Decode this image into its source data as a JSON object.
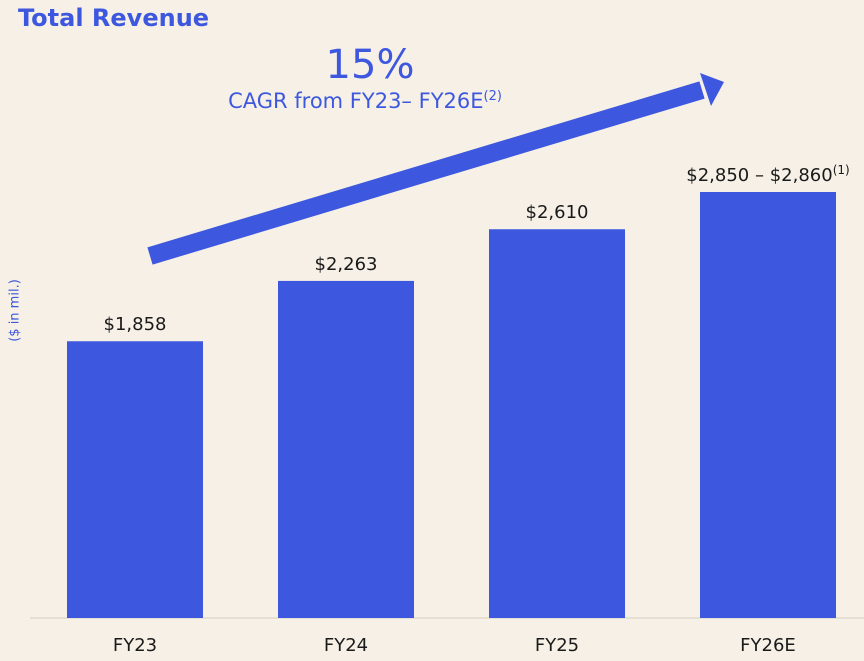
{
  "title": "Total Revenue",
  "ylabel": "($ in mil.)",
  "cagr": {
    "value": "15%",
    "label": "CAGR from FY23– FY26E",
    "footnote": "(2)"
  },
  "colors": {
    "bar": "#3d58de",
    "background": "#f6f0e6",
    "text": "#1a1a1a",
    "accent": "#3d58de"
  },
  "chart_data": {
    "type": "bar",
    "title": "Total Revenue",
    "ylabel": "($ in mil.)",
    "categories": [
      "FY23",
      "FY24",
      "FY25",
      "FY26E"
    ],
    "values": [
      1858,
      2263,
      2610,
      2860
    ],
    "data_labels": [
      "$1,858",
      "$2,263",
      "$2,610",
      "$2,850 – $2,860"
    ],
    "data_label_footnotes": [
      "",
      "",
      "",
      "(1)"
    ],
    "ylim": [
      0,
      3400
    ],
    "grid": false
  }
}
